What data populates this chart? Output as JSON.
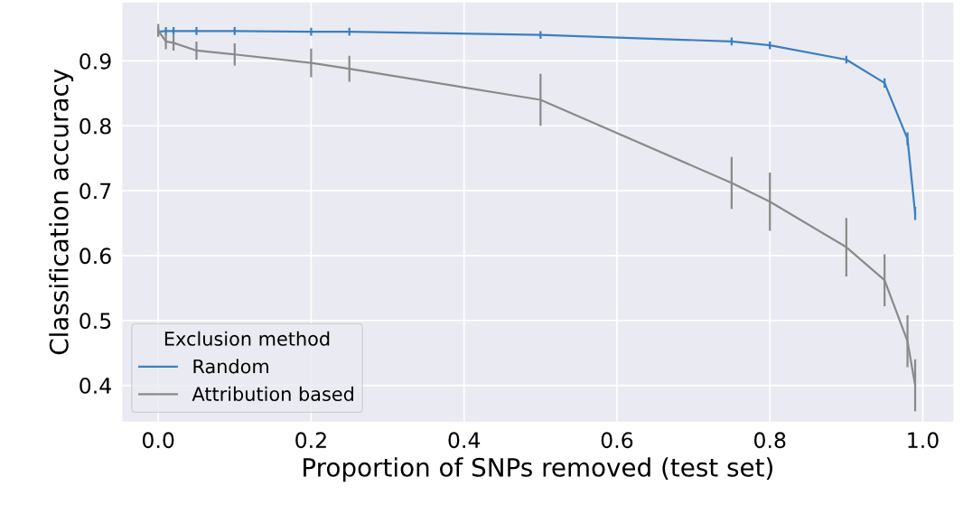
{
  "chart_data": {
    "type": "line",
    "xlabel": "Proportion of SNPs removed (test set)",
    "ylabel": "Classification accuracy",
    "legend_title": "Exclusion method",
    "x": [
      0,
      0.01,
      0.02,
      0.05,
      0.1,
      0.2,
      0.25,
      0.5,
      0.75,
      0.8,
      0.9,
      0.95,
      0.98,
      0.99
    ],
    "series": [
      {
        "name": "Random",
        "color": "#3a7fc0",
        "values": [
          0.945,
          0.946,
          0.946,
          0.946,
          0.946,
          0.945,
          0.945,
          0.94,
          0.93,
          0.924,
          0.902,
          0.866,
          0.78,
          0.665
        ],
        "errors": [
          0.006,
          0.006,
          0.006,
          0.006,
          0.006,
          0.006,
          0.006,
          0.006,
          0.006,
          0.006,
          0.006,
          0.007,
          0.01,
          0.01
        ]
      },
      {
        "name": "Attribution based",
        "color": "#8a8a8a",
        "values": [
          0.947,
          0.93,
          0.928,
          0.916,
          0.91,
          0.897,
          0.888,
          0.84,
          0.712,
          0.683,
          0.613,
          0.562,
          0.468,
          0.4
        ],
        "errors": [
          0.01,
          0.012,
          0.012,
          0.014,
          0.017,
          0.022,
          0.02,
          0.04,
          0.04,
          0.045,
          0.045,
          0.04,
          0.04,
          0.04
        ]
      }
    ],
    "xlim": [
      -0.047,
      1.04
    ],
    "ylim": [
      0.344,
      0.99
    ],
    "xticks": [
      {
        "value": 0,
        "label": "0.0"
      },
      0.2,
      0.4,
      0.6,
      0.8,
      {
        "value": 1,
        "label": "1.0"
      }
    ],
    "yticks": [
      0.4,
      0.5,
      0.6,
      0.7,
      0.8,
      0.9
    ],
    "grid": true,
    "legend": "bottom left"
  }
}
